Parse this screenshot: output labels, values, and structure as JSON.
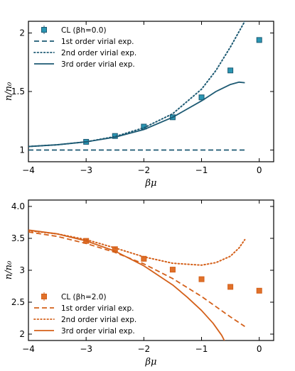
{
  "chart_data": [
    {
      "type": "line",
      "xlabel": "βμ",
      "ylabel": "n/n₀",
      "xlim": [
        -4,
        0.25
      ],
      "ylim": [
        0.9,
        2.1
      ],
      "xticks": [
        -4,
        -3,
        -2,
        -1,
        0
      ],
      "xtick_labels": [
        "−4",
        "−3",
        "−2",
        "−1",
        "0"
      ],
      "yticks": [
        1,
        1.5,
        2
      ],
      "ytick_labels": [
        "1",
        "1.5",
        "2"
      ],
      "color": "#1d5a73",
      "marker_color": "#2a96b3",
      "legend_position": "top-left",
      "series": [
        {
          "name": "CL (βh=0.0)",
          "kind": "markers",
          "x": [
            -3,
            -2.5,
            -2,
            -1.5,
            -1,
            -0.5,
            0
          ],
          "y": [
            1.07,
            1.12,
            1.2,
            1.28,
            1.45,
            1.68,
            1.94
          ]
        },
        {
          "name": "1st order virial exp.",
          "kind": "dashed",
          "x": [
            -4,
            -0.25
          ],
          "y": [
            1.0,
            1.0
          ]
        },
        {
          "name": "2nd order virial exp.",
          "kind": "dotted",
          "x": [
            -4,
            -3.5,
            -3,
            -2.5,
            -2,
            -1.5,
            -1,
            -0.75,
            -0.5,
            -0.25
          ],
          "y": [
            1.03,
            1.045,
            1.07,
            1.115,
            1.19,
            1.31,
            1.52,
            1.68,
            1.88,
            2.1
          ]
        },
        {
          "name": "3rd order virial exp.",
          "kind": "solid",
          "x": [
            -4,
            -3.5,
            -3,
            -2.5,
            -2,
            -1.5,
            -1,
            -0.75,
            -0.5,
            -0.35,
            -0.25
          ],
          "y": [
            1.03,
            1.045,
            1.07,
            1.11,
            1.175,
            1.28,
            1.42,
            1.5,
            1.56,
            1.58,
            1.575
          ]
        }
      ]
    },
    {
      "type": "line",
      "xlabel": "βμ",
      "ylabel": "n/n₀",
      "xlim": [
        -4,
        0.25
      ],
      "ylim": [
        1.9,
        4.1
      ],
      "xticks": [
        -4,
        -3,
        -2,
        -1,
        0
      ],
      "xtick_labels": [
        "−4",
        "−3",
        "−2",
        "−1",
        "0"
      ],
      "yticks": [
        2,
        2.5,
        3,
        3.5,
        4
      ],
      "ytick_labels": [
        "2",
        "2.5",
        "3",
        "3.5",
        "4.0"
      ],
      "color": "#d4601a",
      "marker_color": "#e0712a",
      "legend_position": "bottom-left",
      "series": [
        {
          "name": "CL (βh=2.0)",
          "kind": "markers",
          "x": [
            -3,
            -2.5,
            -2,
            -1.5,
            -1,
            -0.5,
            0
          ],
          "y": [
            3.46,
            3.33,
            3.18,
            3.01,
            2.86,
            2.74,
            2.68
          ]
        },
        {
          "name": "1st order virial exp.",
          "kind": "dashed",
          "x": [
            -4,
            -3.5,
            -3,
            -2.5,
            -2,
            -1.5,
            -1,
            -0.5,
            -0.25
          ],
          "y": [
            3.6,
            3.53,
            3.42,
            3.28,
            3.1,
            2.87,
            2.59,
            2.27,
            2.12
          ]
        },
        {
          "name": "2nd order virial exp.",
          "kind": "dotted",
          "x": [
            -4,
            -3.5,
            -3,
            -2.5,
            -2,
            -1.5,
            -1,
            -0.75,
            -0.5,
            -0.35,
            -0.25
          ],
          "y": [
            3.62,
            3.57,
            3.48,
            3.35,
            3.21,
            3.11,
            3.08,
            3.12,
            3.22,
            3.35,
            3.48
          ]
        },
        {
          "name": "3rd order virial exp.",
          "kind": "solid",
          "x": [
            -4,
            -3.5,
            -3,
            -2.5,
            -2,
            -1.5,
            -1.25,
            -1,
            -0.8,
            -0.65,
            -0.55
          ],
          "y": [
            3.63,
            3.57,
            3.46,
            3.3,
            3.07,
            2.77,
            2.58,
            2.37,
            2.17,
            1.98,
            1.8
          ]
        }
      ]
    }
  ]
}
